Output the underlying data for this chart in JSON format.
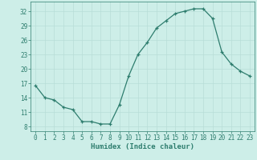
{
  "x": [
    0,
    1,
    2,
    3,
    4,
    5,
    6,
    7,
    8,
    9,
    10,
    11,
    12,
    13,
    14,
    15,
    16,
    17,
    18,
    19,
    20,
    21,
    22,
    23
  ],
  "y": [
    16.5,
    14.0,
    13.5,
    12.0,
    11.5,
    9.0,
    9.0,
    8.5,
    8.5,
    12.5,
    18.5,
    23.0,
    25.5,
    28.5,
    30.0,
    31.5,
    32.0,
    32.5,
    32.5,
    30.5,
    23.5,
    21.0,
    19.5,
    18.5
  ],
  "line_color": "#2e7d6e",
  "marker": "+",
  "bg_color": "#cdeee8",
  "grid_major_color": "#b8ddd7",
  "grid_minor_color": "#cdeee8",
  "xlabel": "Humidex (Indice chaleur)",
  "xlim": [
    -0.5,
    23.5
  ],
  "ylim": [
    7,
    34
  ],
  "yticks": [
    8,
    11,
    14,
    17,
    20,
    23,
    26,
    29,
    32
  ],
  "xticks": [
    0,
    1,
    2,
    3,
    4,
    5,
    6,
    7,
    8,
    9,
    10,
    11,
    12,
    13,
    14,
    15,
    16,
    17,
    18,
    19,
    20,
    21,
    22,
    23
  ],
  "tick_labelsize": 5.5,
  "xlabel_fontsize": 6.5,
  "linewidth": 0.9,
  "markersize": 3.0,
  "markeredgewidth": 0.9
}
